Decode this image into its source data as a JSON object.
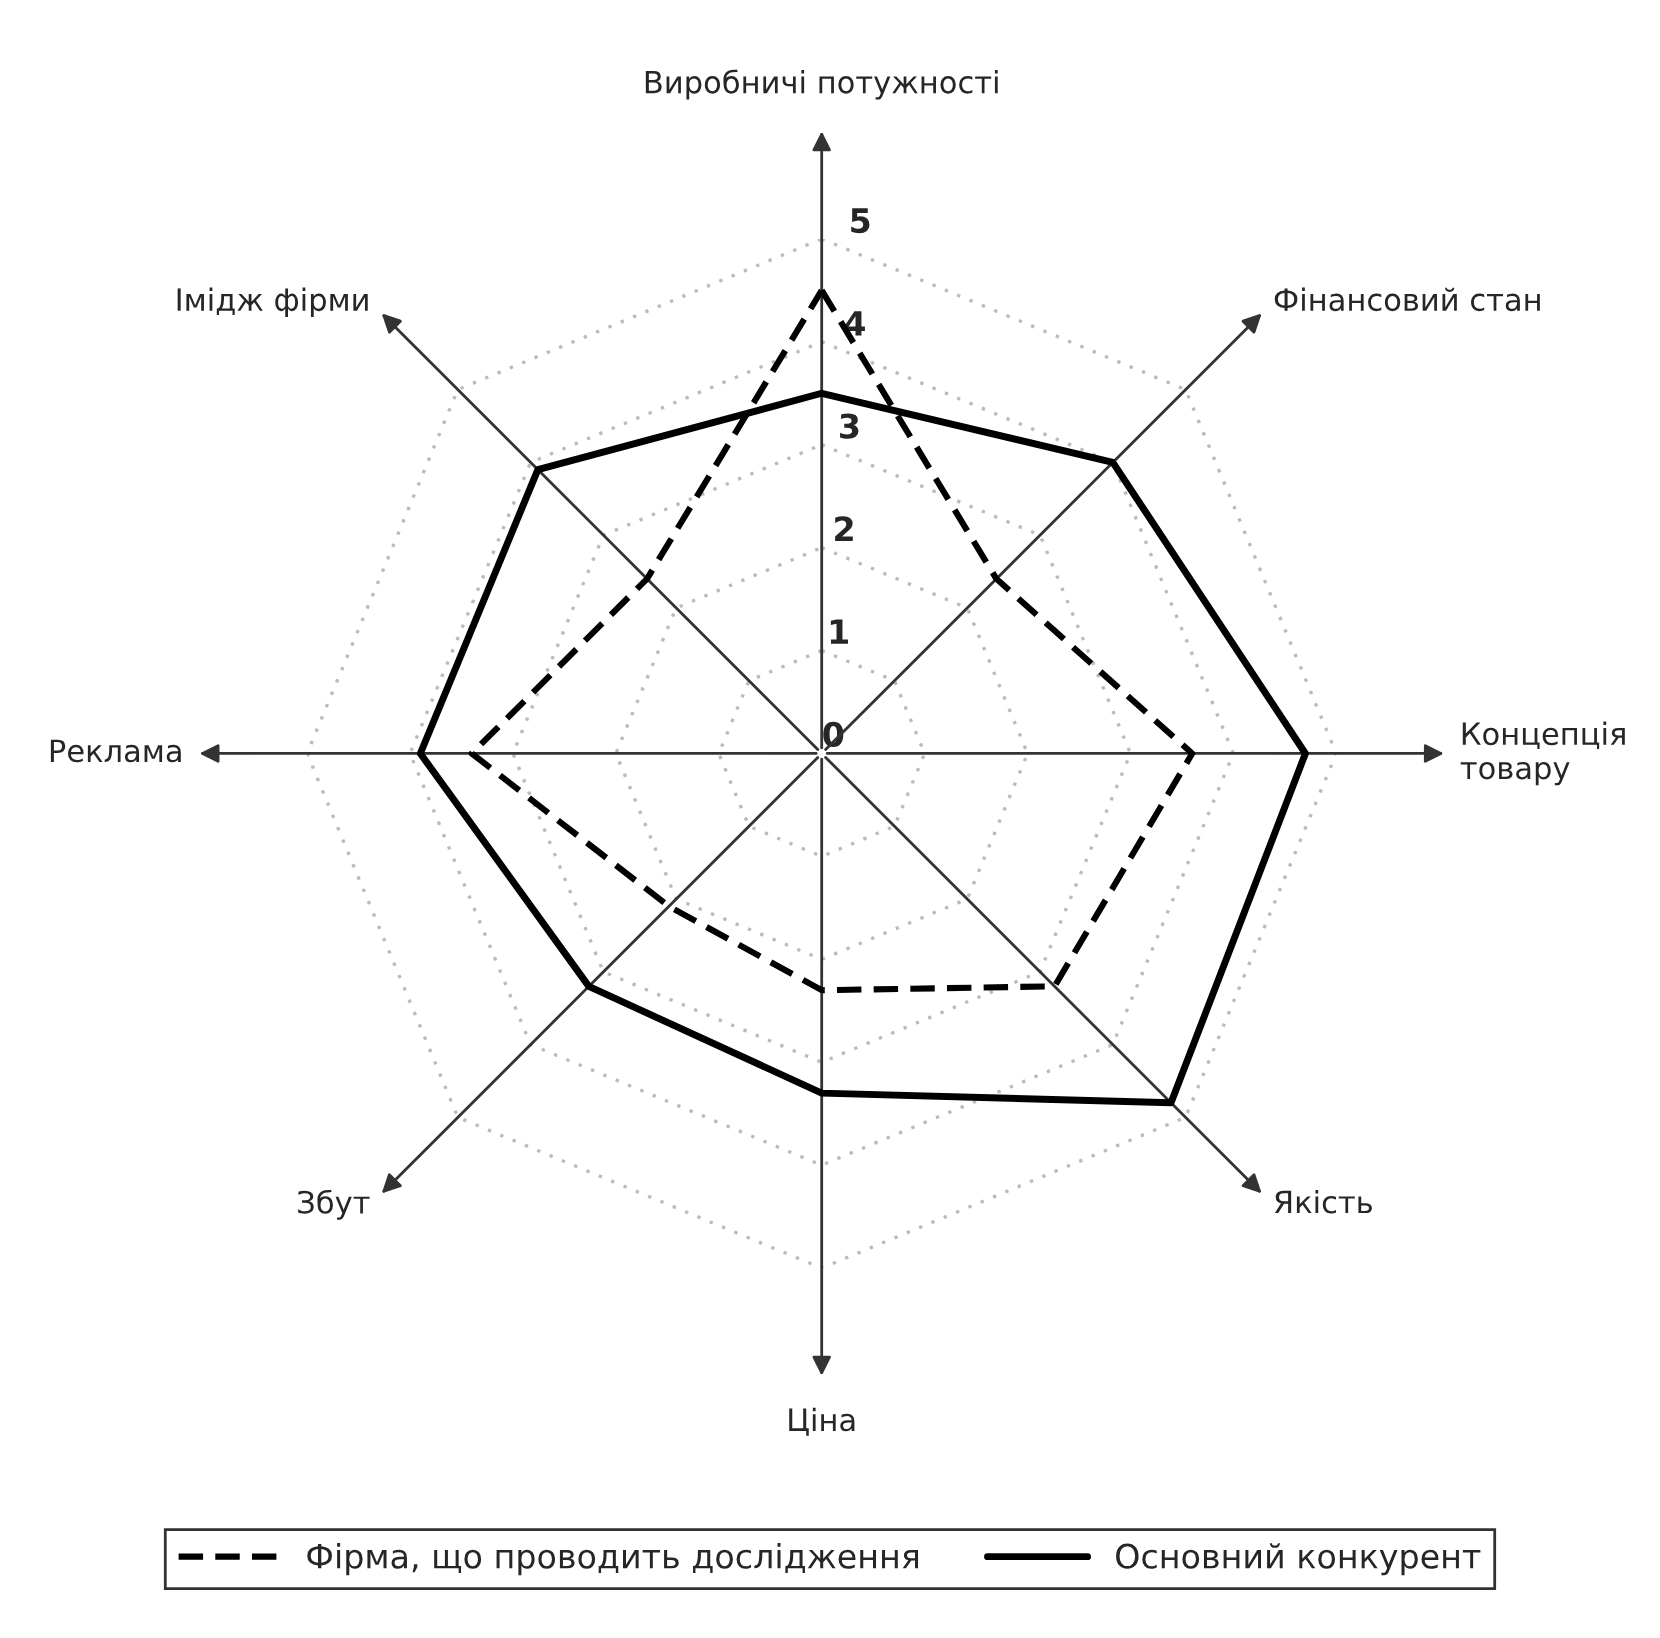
{
  "chart_data": {
    "type": "radar",
    "categories": [
      "Виробничі потужності",
      "Фінансовий стан",
      "Концепція\nтовару",
      "Якість",
      "Ціна",
      "Збут",
      "Реклама",
      "Імідж фірми"
    ],
    "series": [
      {
        "name": "Фірма, що проводить дослідження",
        "color": "#000000",
        "line_style": "dashed",
        "values": [
          4.5,
          2.4,
          3.6,
          3.2,
          2.3,
          2.1,
          3.4,
          2.4
        ]
      },
      {
        "name": "Основний конкурент",
        "color": "#000000",
        "line_style": "solid",
        "values": [
          3.5,
          4.0,
          4.7,
          4.8,
          3.3,
          3.2,
          3.9,
          3.9
        ]
      }
    ],
    "ylim": [
      0,
      5
    ],
    "yticks": [
      0,
      1,
      2,
      3,
      4,
      5
    ],
    "grid": true,
    "legend": "bottom",
    "marker": "none"
  }
}
